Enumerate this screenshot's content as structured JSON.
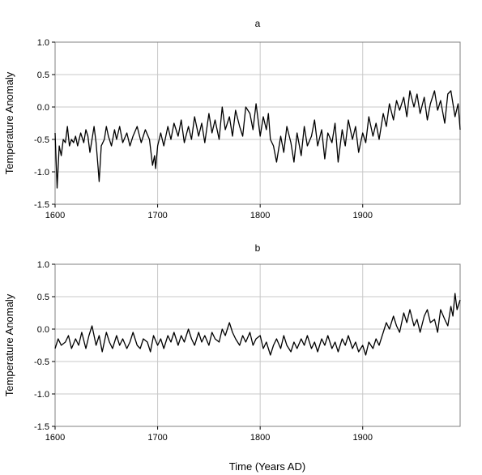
{
  "x_axis_label": "Time (Years AD)",
  "chart_data": [
    {
      "type": "line",
      "title": "a",
      "ylabel": "Temperature Anomaly",
      "xlabel": "",
      "xlim": [
        1600,
        1995
      ],
      "ylim": [
        -1.5,
        1.0
      ],
      "xticks": [
        1600,
        1700,
        1800,
        1900
      ],
      "yticks": [
        1.0,
        0.5,
        0.0,
        -0.5,
        -1.0,
        -1.5
      ],
      "ytick_labels": [
        "1.0",
        "0.5",
        "0.0",
        "-0.5",
        "-1.0",
        "-1.5"
      ],
      "grid": true,
      "color": "#000000",
      "series": [
        {
          "x": [
            1600,
            1602,
            1604,
            1606,
            1608,
            1610,
            1612,
            1614,
            1616,
            1618,
            1620,
            1622,
            1625,
            1628,
            1630,
            1632,
            1634,
            1636,
            1638,
            1640,
            1642,
            1643,
            1645,
            1648,
            1650,
            1652,
            1655,
            1658,
            1660,
            1663,
            1666,
            1670,
            1673,
            1676,
            1680,
            1684,
            1688,
            1692,
            1695,
            1697,
            1698,
            1700,
            1703,
            1706,
            1710,
            1713,
            1716,
            1720,
            1723,
            1726,
            1730,
            1733,
            1736,
            1740,
            1743,
            1746,
            1750,
            1753,
            1756,
            1760,
            1763,
            1766,
            1770,
            1773,
            1776,
            1780,
            1783,
            1786,
            1790,
            1793,
            1796,
            1800,
            1803,
            1806,
            1808,
            1810,
            1813,
            1816,
            1820,
            1823,
            1826,
            1830,
            1833,
            1836,
            1840,
            1843,
            1846,
            1850,
            1853,
            1856,
            1860,
            1863,
            1866,
            1870,
            1873,
            1876,
            1880,
            1883,
            1886,
            1890,
            1893,
            1896,
            1900,
            1903,
            1906,
            1910,
            1913,
            1916,
            1920,
            1923,
            1926,
            1930,
            1933,
            1936,
            1940,
            1943,
            1946,
            1950,
            1953,
            1956,
            1960,
            1963,
            1966,
            1970,
            1973,
            1976,
            1980,
            1983,
            1986,
            1990,
            1993,
            1995
          ],
          "y": [
            -0.4,
            -1.25,
            -0.6,
            -0.75,
            -0.5,
            -0.55,
            -0.3,
            -0.6,
            -0.5,
            -0.55,
            -0.45,
            -0.6,
            -0.4,
            -0.55,
            -0.35,
            -0.45,
            -0.7,
            -0.5,
            -0.3,
            -0.55,
            -0.95,
            -1.15,
            -0.6,
            -0.5,
            -0.3,
            -0.45,
            -0.6,
            -0.35,
            -0.5,
            -0.3,
            -0.55,
            -0.4,
            -0.6,
            -0.45,
            -0.3,
            -0.55,
            -0.35,
            -0.5,
            -0.9,
            -0.75,
            -0.95,
            -0.6,
            -0.4,
            -0.6,
            -0.3,
            -0.5,
            -0.25,
            -0.45,
            -0.2,
            -0.55,
            -0.3,
            -0.5,
            -0.15,
            -0.45,
            -0.25,
            -0.55,
            -0.1,
            -0.4,
            -0.2,
            -0.5,
            0.0,
            -0.35,
            -0.15,
            -0.45,
            -0.05,
            -0.3,
            -0.45,
            0.0,
            -0.1,
            -0.35,
            0.05,
            -0.45,
            -0.15,
            -0.35,
            -0.1,
            -0.5,
            -0.6,
            -0.85,
            -0.45,
            -0.7,
            -0.3,
            -0.55,
            -0.85,
            -0.4,
            -0.75,
            -0.3,
            -0.6,
            -0.45,
            -0.2,
            -0.6,
            -0.35,
            -0.8,
            -0.4,
            -0.55,
            -0.25,
            -0.85,
            -0.35,
            -0.6,
            -0.2,
            -0.5,
            -0.3,
            -0.7,
            -0.4,
            -0.55,
            -0.15,
            -0.45,
            -0.25,
            -0.5,
            -0.1,
            -0.3,
            0.05,
            -0.2,
            0.1,
            -0.05,
            0.15,
            -0.15,
            0.25,
            0.0,
            0.2,
            -0.1,
            0.15,
            -0.2,
            0.05,
            0.25,
            -0.05,
            0.1,
            -0.25,
            0.2,
            0.25,
            -0.15,
            0.05,
            -0.35
          ]
        }
      ]
    },
    {
      "type": "line",
      "title": "b",
      "ylabel": "Temperature Anomaly",
      "xlabel": "Time (Years AD)",
      "xlim": [
        1600,
        1995
      ],
      "ylim": [
        -1.5,
        1.0
      ],
      "xticks": [
        1600,
        1700,
        1800,
        1900
      ],
      "yticks": [
        1.0,
        0.5,
        0.0,
        -0.5,
        -1.0,
        -1.5
      ],
      "ytick_labels": [
        "1.0",
        "0.5",
        "0.0",
        "-0.5",
        "-1.0",
        "-1.5"
      ],
      "grid": true,
      "color": "#000000",
      "series": [
        {
          "x": [
            1600,
            1603,
            1606,
            1610,
            1613,
            1616,
            1620,
            1623,
            1626,
            1630,
            1633,
            1636,
            1640,
            1643,
            1646,
            1650,
            1653,
            1656,
            1660,
            1663,
            1666,
            1670,
            1673,
            1676,
            1680,
            1683,
            1686,
            1690,
            1693,
            1696,
            1700,
            1703,
            1706,
            1710,
            1713,
            1716,
            1720,
            1723,
            1726,
            1730,
            1733,
            1736,
            1740,
            1743,
            1746,
            1750,
            1753,
            1756,
            1760,
            1763,
            1766,
            1770,
            1773,
            1776,
            1780,
            1783,
            1786,
            1790,
            1793,
            1796,
            1800,
            1803,
            1806,
            1810,
            1813,
            1816,
            1820,
            1823,
            1826,
            1830,
            1833,
            1836,
            1840,
            1843,
            1846,
            1850,
            1853,
            1856,
            1860,
            1863,
            1866,
            1870,
            1873,
            1876,
            1880,
            1883,
            1886,
            1890,
            1893,
            1896,
            1900,
            1903,
            1906,
            1910,
            1913,
            1916,
            1920,
            1923,
            1926,
            1930,
            1933,
            1936,
            1940,
            1943,
            1946,
            1950,
            1953,
            1956,
            1960,
            1963,
            1966,
            1970,
            1973,
            1976,
            1980,
            1983,
            1986,
            1988,
            1990,
            1992,
            1995
          ],
          "y": [
            -0.3,
            -0.15,
            -0.25,
            -0.2,
            -0.1,
            -0.3,
            -0.15,
            -0.25,
            -0.05,
            -0.3,
            -0.1,
            0.05,
            -0.25,
            -0.1,
            -0.35,
            -0.05,
            -0.2,
            -0.3,
            -0.1,
            -0.25,
            -0.15,
            -0.3,
            -0.2,
            -0.05,
            -0.25,
            -0.3,
            -0.15,
            -0.2,
            -0.35,
            -0.1,
            -0.25,
            -0.15,
            -0.3,
            -0.1,
            -0.2,
            -0.05,
            -0.25,
            -0.1,
            -0.2,
            0.0,
            -0.15,
            -0.25,
            -0.05,
            -0.2,
            -0.1,
            -0.25,
            -0.05,
            -0.15,
            -0.2,
            0.0,
            -0.1,
            0.1,
            -0.05,
            -0.15,
            -0.25,
            -0.1,
            -0.2,
            -0.05,
            -0.25,
            -0.15,
            -0.1,
            -0.3,
            -0.2,
            -0.4,
            -0.25,
            -0.15,
            -0.3,
            -0.1,
            -0.25,
            -0.35,
            -0.2,
            -0.3,
            -0.15,
            -0.25,
            -0.1,
            -0.3,
            -0.2,
            -0.35,
            -0.15,
            -0.25,
            -0.1,
            -0.3,
            -0.2,
            -0.35,
            -0.15,
            -0.25,
            -0.1,
            -0.3,
            -0.2,
            -0.35,
            -0.25,
            -0.4,
            -0.2,
            -0.3,
            -0.15,
            -0.25,
            -0.05,
            0.1,
            0.0,
            0.2,
            0.05,
            -0.05,
            0.25,
            0.1,
            0.3,
            0.05,
            0.15,
            -0.05,
            0.2,
            0.3,
            0.1,
            0.15,
            -0.05,
            0.3,
            0.15,
            0.05,
            0.35,
            0.2,
            0.55,
            0.3,
            0.45
          ]
        }
      ]
    }
  ]
}
